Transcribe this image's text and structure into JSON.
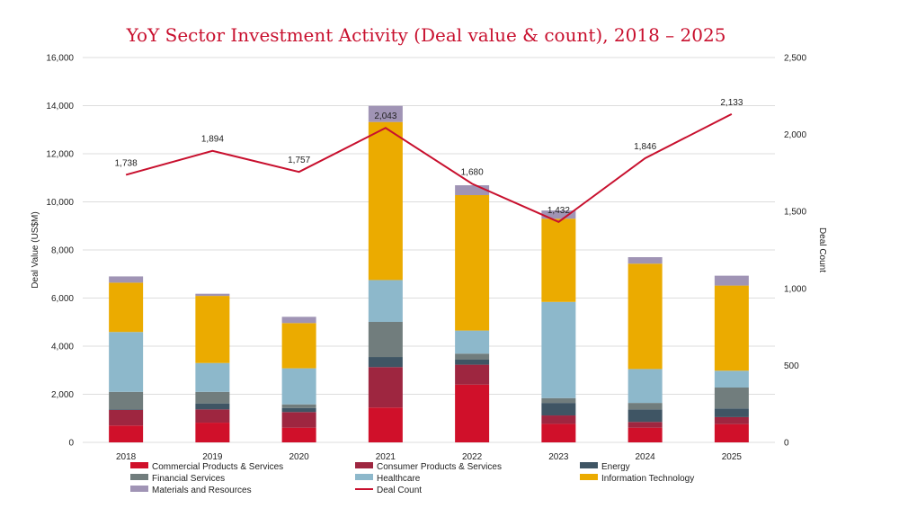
{
  "chart_data": {
    "type": "bar",
    "stacked": true,
    "title": "YoY Sector Investment Activity (Deal value & count), 2018 – 2025",
    "ylabel": "Deal Value (US$M)",
    "y2label": "Deal Count",
    "ylim": [
      0,
      16000
    ],
    "y2lim": [
      0,
      2500
    ],
    "yticks": [
      "0",
      "2,000",
      "4,000",
      "6,000",
      "8,000",
      "10,000",
      "12,000",
      "14,000",
      "16,000"
    ],
    "y2ticks": [
      "0",
      "500",
      "1,000",
      "1,500",
      "2,000",
      "2,500"
    ],
    "categories": [
      "2018",
      "2019",
      "2020",
      "2021",
      "2022",
      "2023",
      "2024",
      "2025"
    ],
    "grid": true,
    "legend_position": "bottom",
    "series": [
      {
        "name": "Commercial Products & Services",
        "color": "#D0102A",
        "values": [
          700,
          820,
          610,
          1450,
          2400,
          770,
          610,
          760
        ]
      },
      {
        "name": "Consumer Products & Services",
        "color": "#9E2640",
        "values": [
          650,
          550,
          650,
          1680,
          830,
          350,
          240,
          290
        ]
      },
      {
        "name": "Energy",
        "color": "#3F5564",
        "values": [
          30,
          250,
          170,
          420,
          210,
          520,
          520,
          360
        ]
      },
      {
        "name": "Financial Services",
        "color": "#717D7D",
        "values": [
          720,
          480,
          150,
          1460,
          250,
          200,
          270,
          870
        ]
      },
      {
        "name": "Healthcare",
        "color": "#8DB8CB",
        "values": [
          2490,
          1200,
          1500,
          1740,
          960,
          4000,
          1410,
          700
        ]
      },
      {
        "name": "Information Technology",
        "color": "#EBAB00",
        "values": [
          2050,
          2790,
          1880,
          6570,
          5630,
          3460,
          4380,
          3540
        ]
      },
      {
        "name": "Materials and Resources",
        "color": "#A094B5",
        "values": [
          260,
          90,
          260,
          670,
          410,
          340,
          270,
          410
        ]
      }
    ],
    "line_series": {
      "name": "Deal Count",
      "color": "#C8102E",
      "values": [
        1738,
        1894,
        1757,
        2043,
        1680,
        1432,
        1846,
        2133
      ],
      "labels": [
        "1,738",
        "1,894",
        "1,757",
        "2,043",
        "1,680",
        "1,432",
        "1,846",
        "2,133"
      ]
    }
  }
}
